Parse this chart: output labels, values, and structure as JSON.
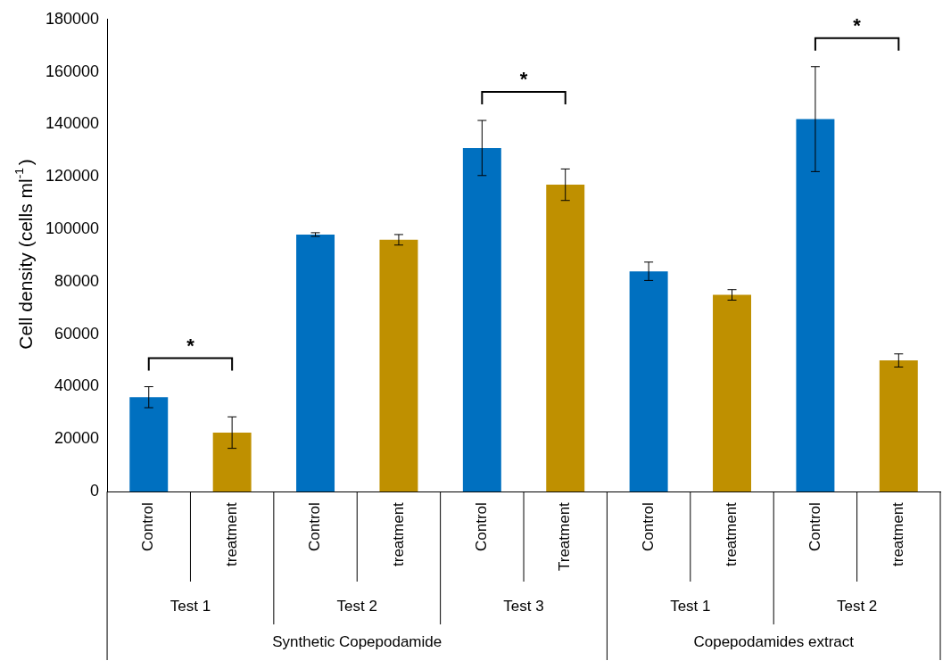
{
  "chart_data": {
    "type": "bar",
    "ylabel": "Cell density (cells ml$^{-1}$)",
    "categories": [
      "Control",
      "treatment",
      "Control",
      "treatment",
      "Control",
      "Treatment",
      "Control",
      "treatment",
      "Control",
      "treatment"
    ],
    "values": [
      36000,
      22500,
      98000,
      96000,
      131000,
      117000,
      84000,
      75000,
      142000,
      50000
    ],
    "errors": [
      4000,
      6000,
      700,
      2000,
      10500,
      6000,
      3500,
      2000,
      20000,
      2500
    ],
    "colors": [
      "#0070c0",
      "#bf9000",
      "#0070c0",
      "#bf9000",
      "#0070c0",
      "#bf9000",
      "#0070c0",
      "#bf9000",
      "#0070c0",
      "#bf9000"
    ],
    "ylim": [
      0,
      180000
    ],
    "yticks": [
      0,
      20000,
      40000,
      60000,
      80000,
      100000,
      120000,
      140000,
      160000,
      180000
    ],
    "grid": false,
    "annotations": [
      "*",
      "*",
      "*",
      "Test 1",
      "Test 2",
      "Test 3",
      "Test 1",
      "Test 2",
      "Synthetic Copepodamide",
      "Copepodamides extract"
    ]
  }
}
